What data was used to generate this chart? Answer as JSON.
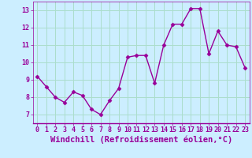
{
  "x": [
    0,
    1,
    2,
    3,
    4,
    5,
    6,
    7,
    8,
    9,
    10,
    11,
    12,
    13,
    14,
    15,
    16,
    17,
    18,
    19,
    20,
    21,
    22,
    23
  ],
  "y": [
    9.2,
    8.6,
    8.0,
    7.7,
    8.3,
    8.1,
    7.3,
    7.0,
    7.8,
    8.5,
    10.3,
    10.4,
    10.4,
    8.8,
    11.0,
    12.2,
    12.2,
    13.1,
    13.1,
    10.5,
    11.8,
    11.0,
    10.9,
    9.7
  ],
  "line_color": "#990099",
  "marker": "D",
  "markersize": 2.5,
  "linewidth": 1.0,
  "bg_color": "#cceeff",
  "grid_color": "#aaddcc",
  "tick_color": "#990099",
  "xlabel": "Windchill (Refroidissement éolien,°C)",
  "xlabel_color": "#990099",
  "ylim": [
    6.5,
    13.5
  ],
  "xlim": [
    -0.5,
    23.5
  ],
  "yticks": [
    7,
    8,
    9,
    10,
    11,
    12,
    13
  ],
  "xticks": [
    0,
    1,
    2,
    3,
    4,
    5,
    6,
    7,
    8,
    9,
    10,
    11,
    12,
    13,
    14,
    15,
    16,
    17,
    18,
    19,
    20,
    21,
    22,
    23
  ],
  "xtick_labels": [
    "0",
    "1",
    "2",
    "3",
    "4",
    "5",
    "6",
    "7",
    "8",
    "9",
    "10",
    "11",
    "12",
    "13",
    "14",
    "15",
    "16",
    "17",
    "18",
    "19",
    "20",
    "21",
    "22",
    "23"
  ],
  "tick_fontsize": 6,
  "xlabel_fontsize": 7.5
}
